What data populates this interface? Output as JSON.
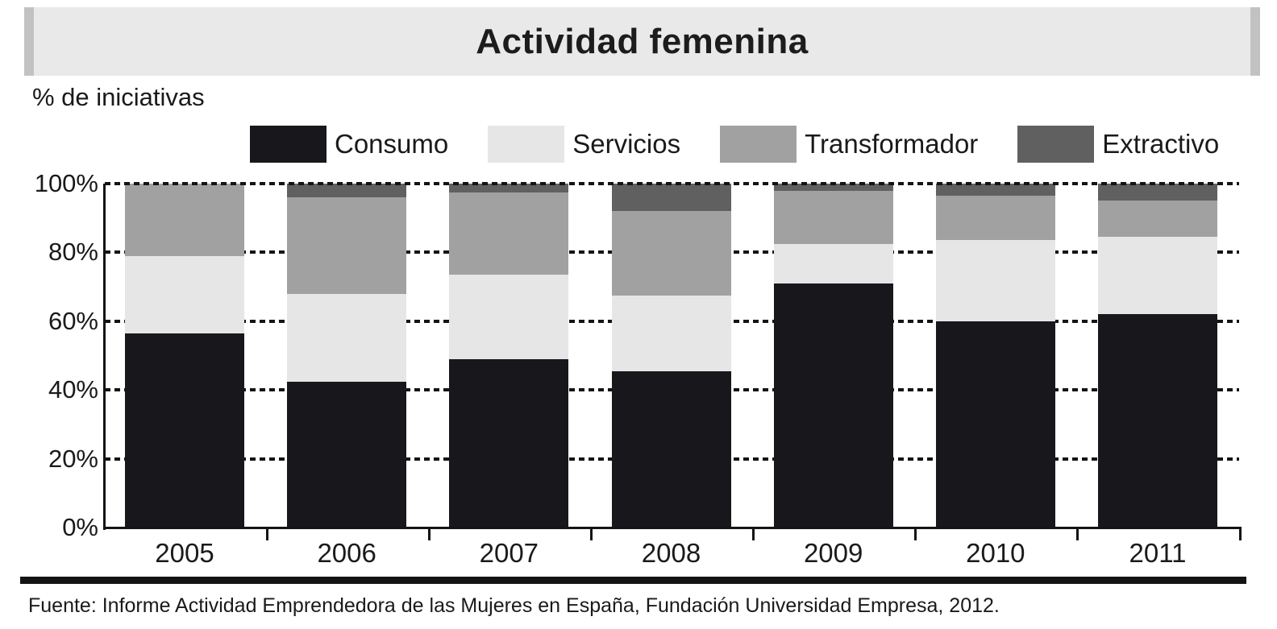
{
  "header": {
    "title": "Actividad femenina"
  },
  "axis_caption": "% de iniciativas",
  "source": {
    "text": "Fuente: Informe Actividad Emprendedora de las Mujeres en España, Fundación Universidad Empresa, 2012."
  },
  "colors": {
    "banner_bg": "#e9e9e9",
    "banner_edges": "#c2c2c2",
    "axis": "#141414",
    "consumo": "#18181c",
    "servicios": "#e6e6e6",
    "transformador": "#a1a1a1",
    "extractivo": "#606060"
  },
  "chart_data": {
    "type": "bar",
    "stacked": true,
    "title": "Actividad femenina",
    "ylabel": "% de iniciativas",
    "xlabel": "",
    "categories": [
      "2005",
      "2006",
      "2007",
      "2008",
      "2009",
      "2010",
      "2011"
    ],
    "series": [
      {
        "name": "Consumo",
        "color": "#18181c",
        "values": [
          56.5,
          42.5,
          49.0,
          45.5,
          71.0,
          60.0,
          62.0
        ]
      },
      {
        "name": "Servicios",
        "color": "#e6e6e6",
        "values": [
          22.5,
          25.5,
          24.5,
          22.0,
          11.5,
          23.5,
          22.5
        ]
      },
      {
        "name": "Transformador",
        "color": "#a1a1a1",
        "values": [
          21.0,
          28.0,
          24.0,
          24.5,
          15.5,
          13.0,
          10.5
        ]
      },
      {
        "name": "Extractivo",
        "color": "#606060",
        "values": [
          0.0,
          4.0,
          2.5,
          8.0,
          2.0,
          3.5,
          5.0
        ]
      }
    ],
    "yticks": [
      100,
      80,
      60,
      40,
      20,
      0
    ],
    "ytick_labels": [
      "100%",
      "80%",
      "60%",
      "40%",
      "20%",
      "0%"
    ],
    "ylim": [
      0,
      100
    ],
    "grid": "dotted horizontal, 100% line drawn over bars",
    "legend_position": "top"
  }
}
